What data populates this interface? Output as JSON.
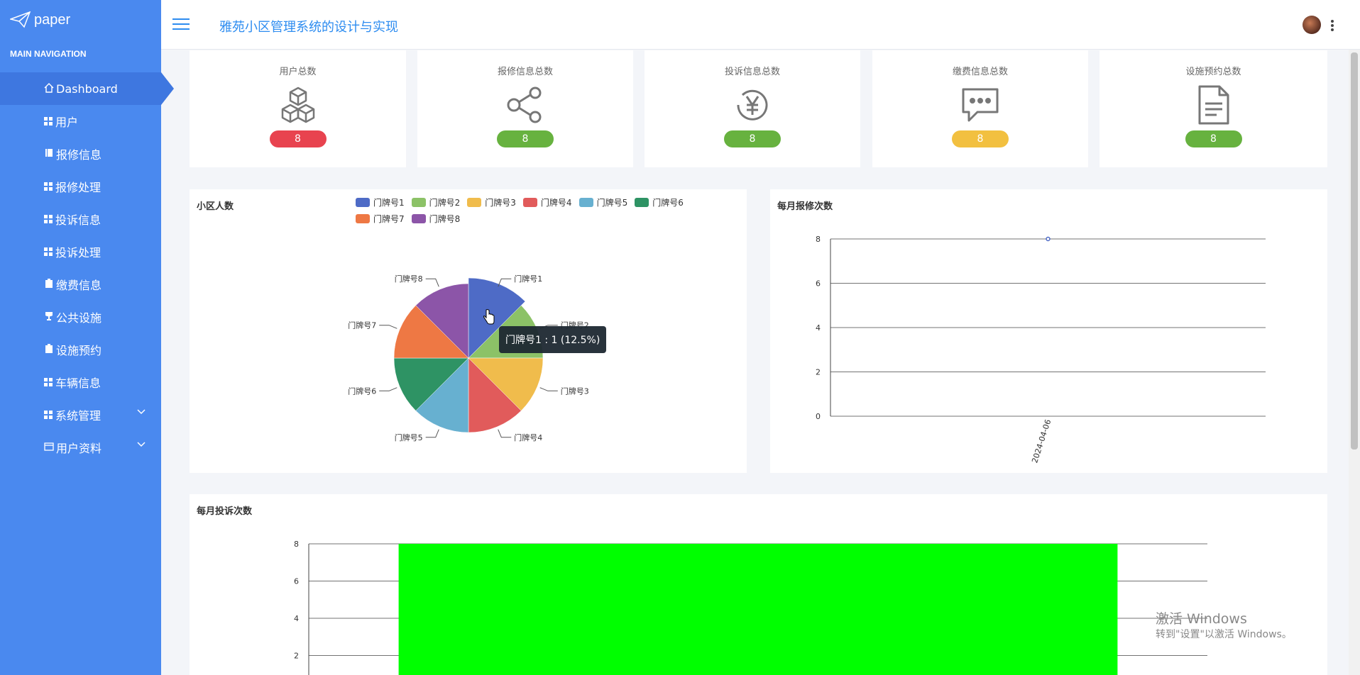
{
  "app": {
    "logo_text": "paper",
    "title": "雅苑小区管理系统的设计与实现"
  },
  "sidebar": {
    "heading": "MAIN NAVIGATION",
    "items": [
      {
        "label": "Dashboard",
        "icon": "home-icon",
        "active": true
      },
      {
        "label": "用户",
        "icon": "grid-icon"
      },
      {
        "label": "报修信息",
        "icon": "book-icon"
      },
      {
        "label": "报修处理",
        "icon": "grid-icon"
      },
      {
        "label": "投诉信息",
        "icon": "grid-icon"
      },
      {
        "label": "投诉处理",
        "icon": "grid-icon"
      },
      {
        "label": "缴费信息",
        "icon": "clipboard-icon"
      },
      {
        "label": "公共设施",
        "icon": "cup-icon"
      },
      {
        "label": "设施预约",
        "icon": "clipboard-icon"
      },
      {
        "label": "车辆信息",
        "icon": "grid-icon"
      },
      {
        "label": "系统管理",
        "icon": "grid-icon",
        "expandable": true
      },
      {
        "label": "用户资料",
        "icon": "window-icon",
        "expandable": true
      }
    ]
  },
  "stats": [
    {
      "label": "用户总数",
      "value": "8",
      "icon": "cubes-icon",
      "color": "#e8434f"
    },
    {
      "label": "报修信息总数",
      "value": "8",
      "icon": "share-icon",
      "color": "#67b23f"
    },
    {
      "label": "投诉信息总数",
      "value": "8",
      "icon": "yen-circle-icon",
      "color": "#67b23f"
    },
    {
      "label": "缴费信息总数",
      "value": "8",
      "icon": "chat-icon",
      "color": "#f2c040"
    },
    {
      "label": "设施预约总数",
      "value": "8",
      "icon": "document-icon",
      "color": "#67b23f"
    }
  ],
  "tooltip": "门牌号1 : 1 (12.5%)",
  "chart_data": [
    {
      "type": "pie",
      "title": "小区人数",
      "categories": [
        "门牌号1",
        "门牌号2",
        "门牌号3",
        "门牌号4",
        "门牌号5",
        "门牌号6",
        "门牌号7",
        "门牌号8"
      ],
      "values": [
        1,
        1,
        1,
        1,
        1,
        1,
        1,
        1
      ],
      "colors": [
        "#4e6bc6",
        "#8cc267",
        "#f0bc4c",
        "#e15b5b",
        "#67b0d0",
        "#2e9364",
        "#ee7844",
        "#8c55a8"
      ],
      "legend": "top"
    },
    {
      "type": "line",
      "title": "每月报修次数",
      "x": [
        "2024-04-06"
      ],
      "series": [
        {
          "values": [
            8
          ]
        }
      ],
      "ylim": [
        0,
        8
      ],
      "yticks": [
        0,
        2,
        4,
        6,
        8
      ],
      "grid": true
    },
    {
      "type": "bar",
      "title": "每月投诉次数",
      "categories": [
        ""
      ],
      "values": [
        8
      ],
      "ylim": [
        0,
        8
      ],
      "yticks": [
        2,
        4,
        6,
        8
      ],
      "color": "#00ff00",
      "grid": true
    }
  ],
  "watermark": {
    "line1": "激活 Windows",
    "line2": "转到\"设置\"以激活 Windows。"
  }
}
